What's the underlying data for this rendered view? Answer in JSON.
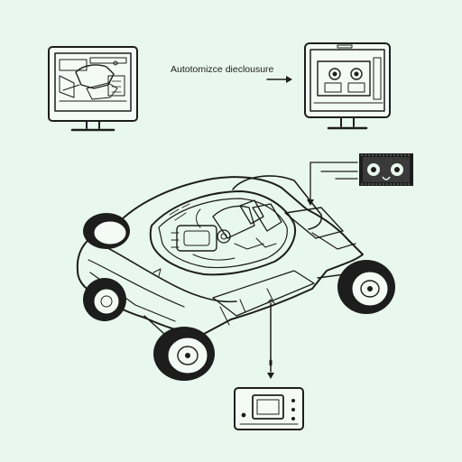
{
  "diagram": {
    "caption": "Autotomizce dieclousure",
    "colors": {
      "background": "#e9f8ee",
      "ink": "#1d1d1d",
      "panel": "#f4fbf6"
    },
    "icons": {
      "left_monitor": "monitor-icon",
      "right_monitor": "monitor-icon",
      "small_device": "handheld-device-icon",
      "vehicle": "buggy-vehicle-illustration"
    }
  }
}
